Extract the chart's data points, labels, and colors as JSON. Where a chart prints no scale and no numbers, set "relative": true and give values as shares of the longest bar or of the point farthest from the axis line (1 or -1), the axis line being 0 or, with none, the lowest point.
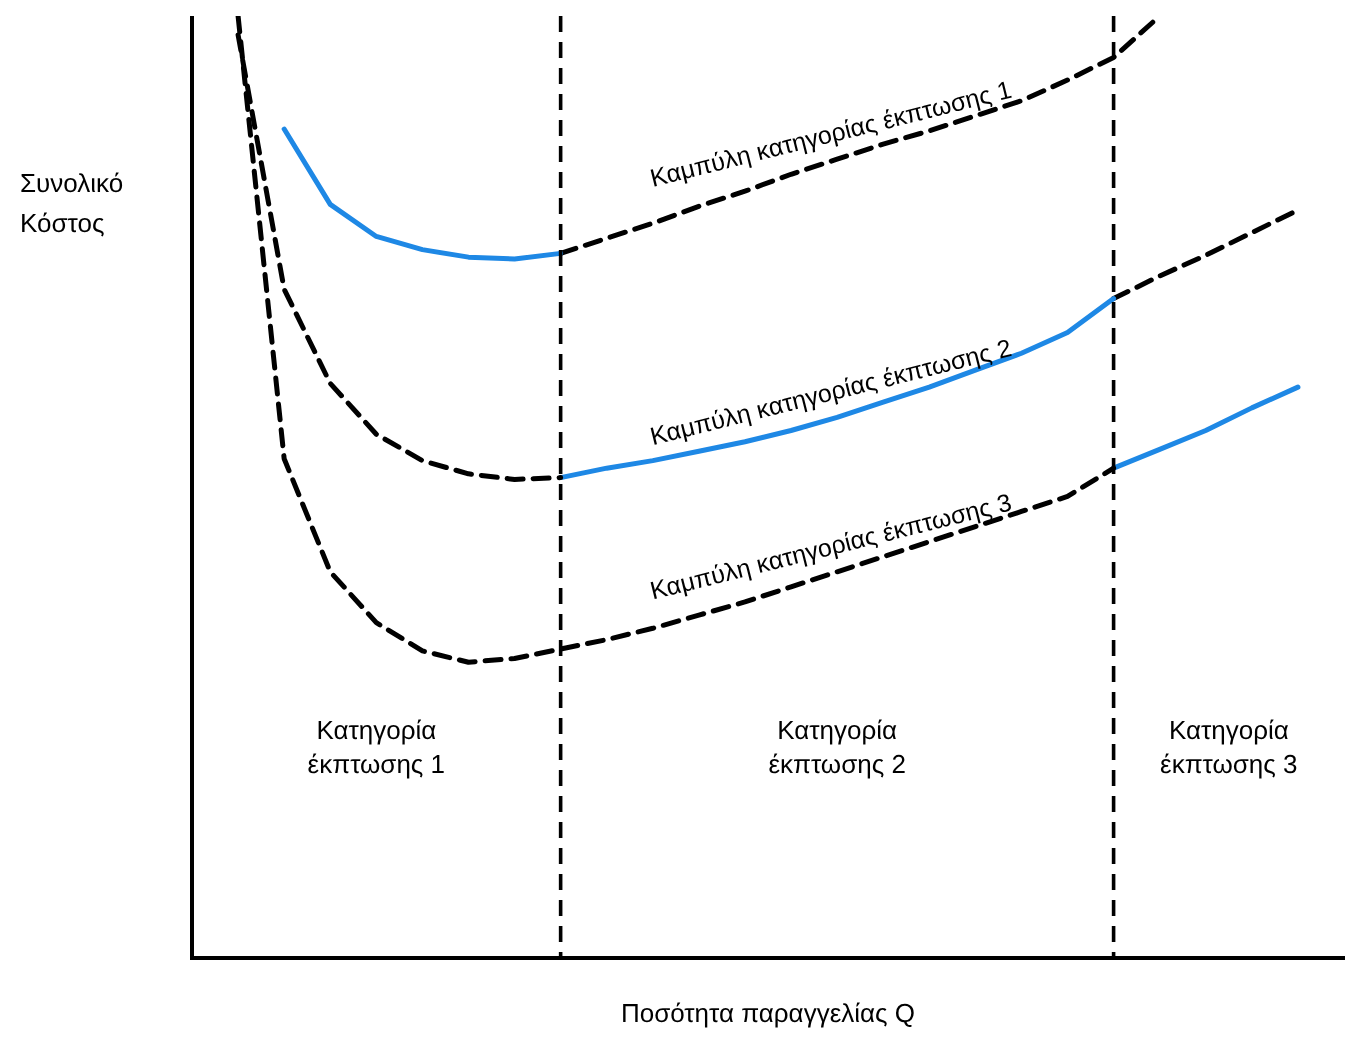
{
  "chart_data": {
    "type": "line",
    "relative": true,
    "xlabel": "Ποσότητα παραγγελίας Q",
    "ylabel": "Συνολικό Κόστος",
    "grid": false,
    "legend": false,
    "marker": "none",
    "categories": [
      null,
      null,
      null,
      null,
      null,
      null,
      null,
      null,
      null,
      null,
      null,
      null,
      null,
      null,
      null,
      null,
      null,
      null,
      null,
      null,
      null,
      null,
      null,
      null,
      null,
      null
    ],
    "series": [
      {
        "color": "#1e88e5",
        "line_style": "solid",
        "values": [
          null,
          null,
          0.88,
          0.8,
          0.766,
          0.752,
          0.744,
          0.742,
          0.748,
          null,
          null,
          null,
          null,
          null,
          null,
          null,
          null,
          null,
          null,
          null,
          null,
          null,
          null,
          null,
          null,
          null
        ]
      },
      {
        "color": "#000000",
        "line_style": "dashed",
        "values": [
          null,
          null,
          null,
          null,
          null,
          null,
          null,
          null,
          0.748,
          0.764,
          0.78,
          0.798,
          0.814,
          0.832,
          0.848,
          0.864,
          0.878,
          0.894,
          0.91,
          0.932,
          0.956,
          1.0,
          null,
          null,
          null,
          null
        ]
      },
      {
        "color": "#000000",
        "line_style": "dashed",
        "values": [
          null,
          0.98,
          0.71,
          0.61,
          0.556,
          0.528,
          0.514,
          0.508,
          0.51,
          null,
          null,
          null,
          null,
          null,
          null,
          null,
          null,
          null,
          null,
          null,
          null,
          null,
          null,
          null,
          null,
          null
        ]
      },
      {
        "color": "#1e88e5",
        "line_style": "solid",
        "values": [
          null,
          null,
          null,
          null,
          null,
          null,
          null,
          null,
          0.51,
          0.52,
          0.528,
          0.538,
          0.548,
          0.56,
          0.574,
          0.59,
          0.606,
          0.624,
          0.642,
          0.664,
          0.7,
          null,
          null,
          null,
          null,
          null
        ]
      },
      {
        "color": "#000000",
        "line_style": "dashed",
        "values": [
          null,
          null,
          null,
          null,
          null,
          null,
          null,
          null,
          null,
          null,
          null,
          null,
          null,
          null,
          null,
          null,
          null,
          null,
          null,
          null,
          0.7,
          0.724,
          0.746,
          0.77,
          0.794,
          null
        ]
      },
      {
        "color": "#000000",
        "line_style": "dashed",
        "values": [
          null,
          1.0,
          0.53,
          0.41,
          0.356,
          0.326,
          0.314,
          0.318,
          0.328,
          0.338,
          0.35,
          0.364,
          0.378,
          0.394,
          0.41,
          0.426,
          0.442,
          0.458,
          0.474,
          0.49,
          0.52,
          null,
          null,
          null,
          null,
          null
        ]
      },
      {
        "color": "#1e88e5",
        "line_style": "solid",
        "values": [
          null,
          null,
          null,
          null,
          null,
          null,
          null,
          null,
          null,
          null,
          null,
          null,
          null,
          null,
          null,
          null,
          null,
          null,
          null,
          null,
          0.52,
          0.54,
          0.56,
          0.584,
          0.606,
          null
        ]
      }
    ],
    "annotations": [
      {
        "text": "Καμπύλη κατηγορίας έκπτωσης 1",
        "y": 0.848
      },
      {
        "text": "Καμπύλη κατηγορίας έκπτωσης 2",
        "y": 0.574
      },
      {
        "text": "Καμπύλη κατηγορίας έκπτωσης 3",
        "y": 0.41
      },
      "Κατηγορία\nέκπτωσης 1",
      "Κατηγορία\nέκπτωσης 2",
      "Κατηγορία\nέκπτωσης 3"
    ]
  }
}
